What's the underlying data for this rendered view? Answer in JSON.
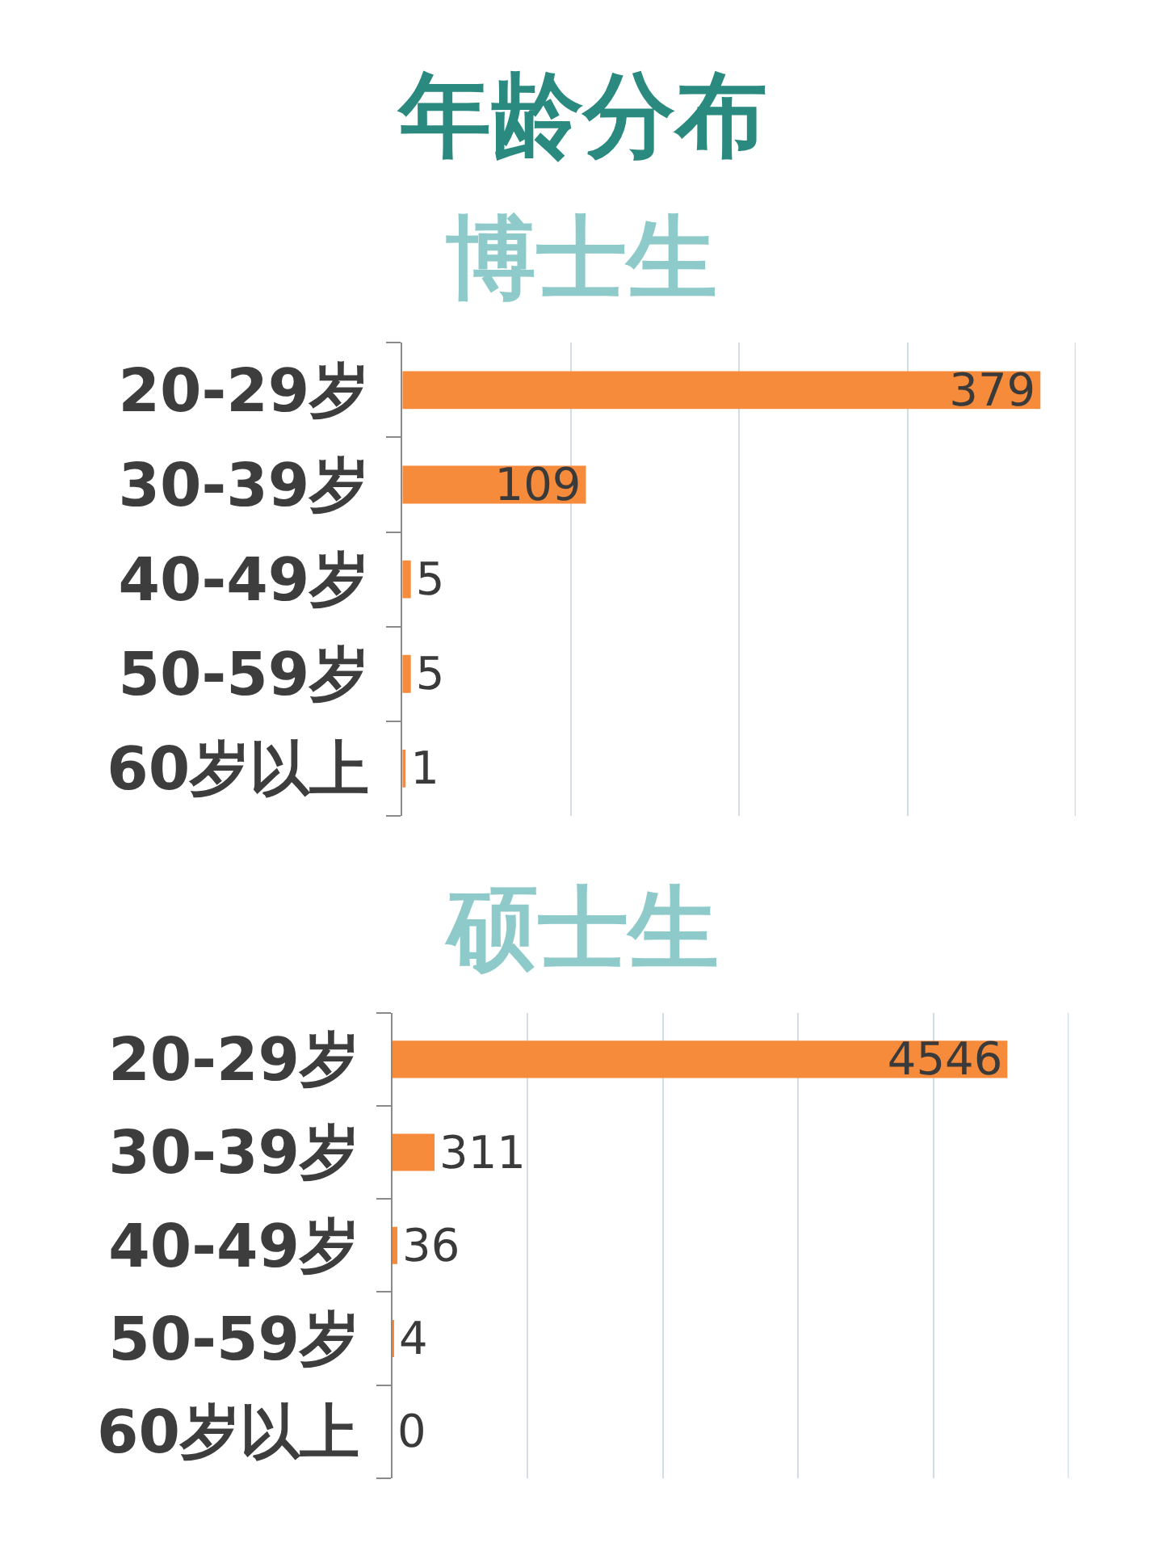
{
  "chart_data": [
    {
      "type": "bar",
      "orientation": "horizontal",
      "title": "年龄分布",
      "subtitle": "博士生",
      "categories": [
        "20-29岁",
        "30-39岁",
        "40-49岁",
        "50-59岁",
        "60岁以上"
      ],
      "values": [
        379,
        109,
        5,
        5,
        1
      ],
      "color": "#f68b3c",
      "data_labels": true,
      "xlim": [
        0,
        400
      ],
      "xticks": [
        {
          "value": 0,
          "label": null
        },
        {
          "value": 100,
          "label": null
        },
        {
          "value": 200,
          "label": null
        },
        {
          "value": 300,
          "label": null
        },
        {
          "value": 400,
          "label": null
        }
      ],
      "grid": "x",
      "tick_labels": "y"
    },
    {
      "type": "bar",
      "orientation": "horizontal",
      "subtitle": "硕士生",
      "categories": [
        "20-29岁",
        "30-39岁",
        "40-49岁",
        "50-59岁",
        "60岁以上"
      ],
      "values": [
        4546,
        311,
        36,
        4,
        0
      ],
      "color": "#f68b3c",
      "data_labels": true,
      "xlim": [
        0,
        5000
      ],
      "xticks": [
        {
          "value": 0,
          "label": null
        },
        {
          "value": 1000,
          "label": null
        },
        {
          "value": 2000,
          "label": null
        },
        {
          "value": 3000,
          "label": null
        },
        {
          "value": 4000,
          "label": null
        },
        {
          "value": 5000,
          "label": null
        }
      ],
      "grid": "x",
      "tick_labels": "y"
    }
  ]
}
